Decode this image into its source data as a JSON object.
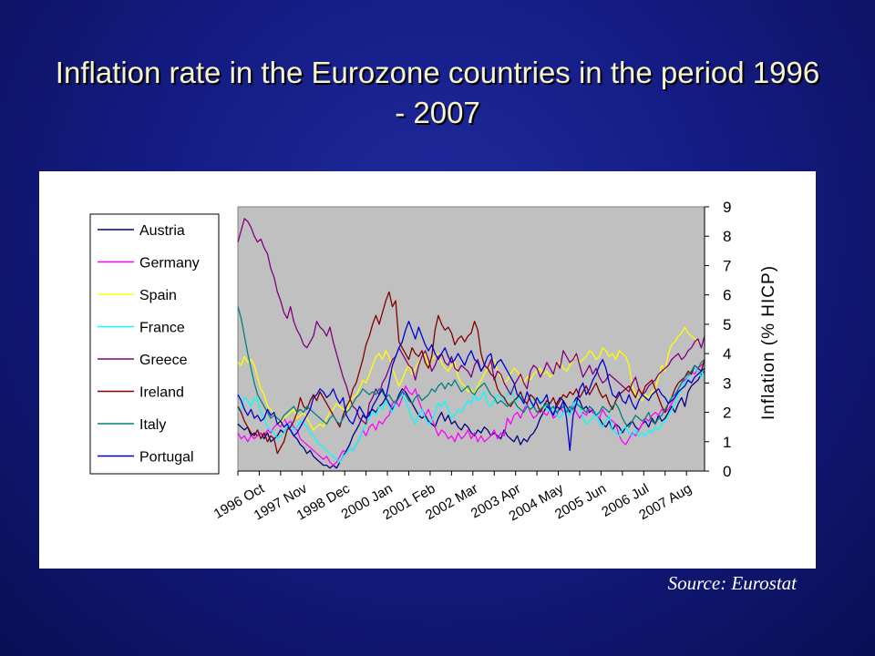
{
  "slide": {
    "title": "Inflation rate in the Eurozone countries in the period 1996 - 2007",
    "source": "Source: Eurostat"
  },
  "chart_data": {
    "type": "line",
    "title": "",
    "xlabel": "",
    "ylabel": "Inflation (% HICP)",
    "ylim": [
      0,
      9
    ],
    "yticks": [
      0,
      1,
      2,
      3,
      4,
      5,
      6,
      7,
      8,
      9
    ],
    "y_axis_side": "right",
    "grid": false,
    "legend_position": "left",
    "plot_background": "#c0c0c0",
    "x_tick_labels": [
      "1996 Oct",
      "1997 Nov",
      "1998 Dec",
      "2000 Jan",
      "2001 Feb",
      "2002 Mar",
      "2003 Apr",
      "2004 May",
      "2005 Jun",
      "2006 Jul",
      "2007 Aug"
    ],
    "x_tick_label_positions": [
      0,
      13,
      26,
      39,
      52,
      65,
      78,
      91,
      104,
      117,
      130
    ],
    "x_range": [
      0,
      142
    ],
    "x_unit": "months since 1996 Oct",
    "series": [
      {
        "name": "Austria",
        "color": "#000080",
        "values": [
          1.6,
          1.5,
          1.4,
          1.5,
          1.2,
          1.3,
          1.2,
          1.3,
          1.1,
          1.3,
          1.0,
          1.1,
          1.2,
          1.4,
          1.3,
          1.5,
          1.4,
          1.2,
          1.1,
          0.9,
          0.8,
          0.6,
          0.7,
          0.5,
          0.4,
          0.3,
          0.2,
          0.2,
          0.1,
          0.2,
          0.1,
          0.3,
          0.5,
          0.7,
          0.9,
          1.2,
          1.4,
          1.6,
          1.9,
          1.8,
          2.0,
          2.1,
          2.0,
          2.2,
          2.3,
          2.5,
          2.3,
          2.1,
          2.3,
          2.6,
          2.8,
          2.7,
          2.5,
          2.3,
          2.1,
          1.9,
          1.8,
          1.9,
          1.7,
          1.6,
          1.5,
          1.8,
          2.0,
          1.7,
          1.9,
          1.6,
          1.7,
          1.5,
          1.4,
          1.6,
          1.5,
          1.3,
          1.2,
          1.4,
          1.3,
          1.5,
          1.4,
          1.2,
          1.3,
          1.2,
          1.1,
          1.4,
          1.2,
          1.1,
          1.0,
          1.2,
          0.9,
          1.1,
          1.0,
          1.2,
          1.3,
          1.5,
          1.8,
          2.0,
          2.2,
          2.1,
          1.9,
          2.3,
          2.5,
          2.4,
          2.2,
          2.0,
          2.3,
          2.5,
          2.4,
          2.1,
          2.2,
          2.0,
          2.1,
          1.9,
          1.8,
          1.6,
          1.5,
          1.7,
          1.4,
          1.6,
          1.5,
          1.3,
          1.5,
          1.6,
          1.7,
          1.5,
          1.4,
          1.6,
          1.7,
          1.5,
          1.8,
          1.6,
          1.9,
          1.7,
          1.8,
          2.0,
          2.2,
          2.0,
          2.3,
          2.5,
          2.2,
          2.7,
          2.9,
          3.0,
          3.1,
          3.3,
          3.4
        ]
      },
      {
        "name": "Germany",
        "color": "#ff00ff",
        "values": [
          1.3,
          1.1,
          1.2,
          1.0,
          1.2,
          1.1,
          1.2,
          1.3,
          1.2,
          1.4,
          1.3,
          1.5,
          1.6,
          1.5,
          1.8,
          1.6,
          1.7,
          1.5,
          1.4,
          1.1,
          1.0,
          0.9,
          0.8,
          0.7,
          0.6,
          0.5,
          0.4,
          0.5,
          0.3,
          0.2,
          0.3,
          0.5,
          0.7,
          0.6,
          0.8,
          0.7,
          0.9,
          1.1,
          1.4,
          1.2,
          1.5,
          1.6,
          1.4,
          1.7,
          1.6,
          1.8,
          1.9,
          2.3,
          2.4,
          2.2,
          2.5,
          2.9,
          2.7,
          2.6,
          2.8,
          2.4,
          2.1,
          1.9,
          2.1,
          1.8,
          1.5,
          1.2,
          1.4,
          1.3,
          1.1,
          1.2,
          1.0,
          1.3,
          1.1,
          1.2,
          1.4,
          1.1,
          1.3,
          1.0,
          1.2,
          1.0,
          1.1,
          1.2,
          1.4,
          1.1,
          1.3,
          1.2,
          1.8,
          1.6,
          1.9,
          2.0,
          1.8,
          2.1,
          2.3,
          2.0,
          1.8,
          1.9,
          2.1,
          2.0,
          1.9,
          2.1,
          1.8,
          1.9,
          2.2,
          2.0,
          2.1,
          1.9,
          2.2,
          2.0,
          1.8,
          2.0,
          1.9,
          2.1,
          2.0,
          1.9,
          1.8,
          2.1,
          1.9,
          1.8,
          1.7,
          1.6,
          1.2,
          1.0,
          0.9,
          1.1,
          1.3,
          1.2,
          1.4,
          1.6,
          1.8,
          1.7,
          1.9,
          2.0,
          1.9,
          2.1,
          2.0,
          2.1,
          2.3,
          2.5,
          2.8,
          3.0,
          3.1,
          3.2,
          3.4,
          3.3,
          3.5,
          3.6,
          3.7
        ]
      },
      {
        "name": "Spain",
        "color": "#ffff00",
        "values": [
          3.7,
          3.6,
          3.9,
          3.7,
          3.8,
          3.6,
          3.2,
          2.8,
          2.6,
          2.2,
          2.1,
          1.9,
          1.7,
          1.6,
          1.8,
          1.9,
          2.0,
          2.1,
          1.8,
          1.9,
          2.0,
          1.8,
          1.6,
          1.4,
          1.5,
          1.6,
          1.5,
          1.8,
          2.0,
          2.1,
          2.3,
          2.2,
          2.1,
          2.0,
          2.3,
          2.5,
          2.6,
          2.8,
          3.1,
          3.0,
          3.3,
          3.6,
          3.9,
          4.0,
          3.8,
          4.1,
          3.9,
          3.5,
          3.2,
          2.9,
          3.1,
          3.4,
          3.6,
          3.3,
          3.5,
          3.7,
          3.9,
          4.0,
          3.6,
          3.8,
          3.9,
          4.0,
          3.7,
          3.5,
          3.4,
          3.6,
          3.7,
          3.2,
          3.0,
          2.9,
          2.7,
          2.8,
          2.6,
          2.9,
          3.1,
          3.3,
          3.5,
          3.6,
          3.8,
          3.4,
          3.2,
          3.0,
          3.1,
          3.3,
          3.5,
          3.4,
          3.2,
          3.0,
          3.2,
          3.1,
          3.3,
          3.4,
          3.5,
          3.3,
          3.4,
          3.2,
          3.3,
          3.6,
          3.7,
          3.5,
          3.4,
          3.6,
          3.8,
          3.9,
          3.7,
          3.8,
          3.9,
          4.1,
          4.0,
          3.8,
          3.9,
          4.2,
          4.1,
          3.9,
          4.0,
          3.8,
          4.1,
          4.0,
          3.9,
          3.6,
          2.9,
          2.6,
          2.5,
          2.4,
          2.6,
          2.5,
          2.7,
          2.8,
          3.2,
          3.6,
          3.4,
          4.0,
          4.3,
          4.4,
          4.6,
          4.7,
          4.9,
          4.7,
          4.6,
          4.5,
          4.4
        ]
      },
      {
        "name": "France",
        "color": "#00ffff",
        "values": [
          2.0,
          2.1,
          2.5,
          2.4,
          2.2,
          2.5,
          2.4,
          2.0,
          1.8,
          1.5,
          1.4,
          1.3,
          1.1,
          1.2,
          1.3,
          1.5,
          1.6,
          1.4,
          1.5,
          1.7,
          1.6,
          1.5,
          1.3,
          1.2,
          1.0,
          0.9,
          0.8,
          0.7,
          0.6,
          0.5,
          0.4,
          0.3,
          0.5,
          0.6,
          0.8,
          0.7,
          0.9,
          1.1,
          1.4,
          1.6,
          1.8,
          2.0,
          1.9,
          2.2,
          2.1,
          2.4,
          2.2,
          2.0,
          2.3,
          2.5,
          2.6,
          2.4,
          2.1,
          1.8,
          1.6,
          1.9,
          2.1,
          1.8,
          1.6,
          1.7,
          2.0,
          2.3,
          2.2,
          2.4,
          2.1,
          1.8,
          1.9,
          2.1,
          2.0,
          2.2,
          2.4,
          2.3,
          2.6,
          2.4,
          2.5,
          2.7,
          2.3,
          2.2,
          2.4,
          2.6,
          2.5,
          2.4,
          2.6,
          2.8,
          2.5,
          2.4,
          2.6,
          2.3,
          2.2,
          2.1,
          2.3,
          2.5,
          2.4,
          2.3,
          2.1,
          2.0,
          2.2,
          1.9,
          1.8,
          2.0,
          2.1,
          1.9,
          2.3,
          2.4,
          2.2,
          1.8,
          1.6,
          1.7,
          1.8,
          2.0,
          1.6,
          1.5,
          1.7,
          1.9,
          1.4,
          1.3,
          1.2,
          1.4,
          1.5,
          1.3,
          1.2,
          1.4,
          1.2,
          1.3,
          1.2,
          1.4,
          1.3,
          1.5,
          1.4,
          1.6,
          1.7,
          1.9,
          2.1,
          2.3,
          2.6,
          2.8,
          3.0,
          3.2,
          3.3,
          3.5,
          3.4,
          3.2,
          3.6
        ]
      },
      {
        "name": "Greece",
        "color": "#800080",
        "values": [
          7.8,
          8.2,
          8.6,
          8.5,
          8.3,
          8.0,
          7.8,
          7.9,
          7.6,
          7.4,
          6.9,
          6.6,
          6.1,
          5.8,
          5.4,
          5.2,
          5.6,
          5.1,
          4.8,
          4.6,
          4.3,
          4.2,
          4.4,
          4.6,
          5.1,
          4.9,
          4.8,
          4.6,
          4.9,
          4.4,
          4.0,
          3.6,
          3.2,
          2.9,
          2.5,
          2.2,
          2.1,
          1.8,
          1.7,
          1.6,
          2.3,
          2.5,
          2.8,
          2.6,
          3.0,
          3.2,
          3.5,
          3.8,
          3.9,
          4.2,
          4.0,
          3.8,
          3.6,
          3.5,
          3.1,
          3.6,
          3.9,
          4.1,
          3.8,
          3.4,
          3.6,
          3.9,
          4.0,
          3.7,
          3.6,
          3.9,
          3.5,
          3.4,
          3.6,
          3.5,
          3.4,
          3.2,
          3.6,
          3.8,
          3.4,
          3.6,
          3.5,
          3.8,
          3.1,
          3.4,
          3.3,
          3.0,
          2.8,
          2.6,
          2.9,
          3.1,
          3.3,
          3.0,
          2.8,
          3.4,
          3.6,
          3.5,
          3.2,
          3.4,
          3.7,
          3.5,
          3.3,
          3.7,
          3.5,
          4.1,
          3.9,
          3.7,
          3.8,
          4.0,
          3.6,
          3.2,
          3.4,
          3.6,
          3.3,
          3.5,
          3.2,
          3.0,
          3.1,
          3.3,
          3.2,
          3.1,
          3.0,
          2.9,
          2.8,
          2.7,
          3.0,
          3.2,
          2.8,
          2.6,
          2.7,
          2.9,
          3.0,
          3.1,
          3.3,
          3.4,
          3.5,
          3.6,
          3.8,
          3.9,
          4.0,
          3.8,
          3.9,
          4.1,
          4.2,
          4.4,
          4.5,
          4.2,
          4.6
        ]
      },
      {
        "name": "Ireland",
        "color": "#800000",
        "values": [
          2.2,
          2.0,
          1.7,
          1.5,
          1.3,
          1.2,
          1.4,
          1.1,
          1.3,
          1.0,
          1.2,
          1.1,
          0.6,
          0.8,
          1.0,
          1.4,
          1.5,
          1.7,
          2.0,
          2.5,
          2.2,
          2.1,
          2.4,
          2.6,
          2.4,
          2.7,
          2.5,
          2.3,
          2.1,
          1.9,
          1.7,
          1.5,
          1.9,
          2.2,
          2.4,
          2.8,
          3.0,
          3.4,
          3.8,
          4.3,
          4.6,
          5.0,
          5.3,
          5.0,
          5.4,
          5.8,
          6.1,
          5.6,
          5.8,
          4.4,
          4.2,
          4.0,
          3.8,
          4.2,
          4.0,
          3.9,
          4.1,
          3.7,
          3.5,
          3.9,
          4.8,
          5.3,
          5.0,
          4.8,
          4.9,
          4.7,
          4.3,
          4.5,
          4.6,
          4.4,
          4.6,
          4.7,
          5.1,
          4.8,
          4.0,
          3.6,
          3.5,
          3.3,
          3.2,
          2.8,
          2.6,
          2.5,
          2.3,
          2.2,
          2.4,
          2.5,
          2.7,
          2.4,
          2.3,
          2.6,
          2.5,
          2.3,
          2.0,
          2.2,
          2.4,
          2.3,
          2.5,
          2.2,
          2.4,
          2.6,
          2.5,
          2.7,
          2.6,
          2.8,
          2.5,
          2.7,
          2.9,
          2.6,
          2.8,
          3.0,
          2.7,
          2.5,
          2.6,
          2.3,
          2.1,
          2.4,
          2.6,
          2.7,
          2.8,
          2.9,
          2.7,
          2.5,
          2.8,
          2.6,
          2.9,
          3.0,
          3.1,
          2.8,
          2.5,
          2.2,
          2.0,
          2.3,
          2.5,
          2.8,
          3.0,
          3.1,
          3.2,
          3.4,
          3.3,
          3.6,
          3.5,
          3.4,
          3.8
        ]
      },
      {
        "name": "Italy",
        "color": "#008080",
        "values": [
          5.6,
          5.2,
          4.6,
          4.0,
          3.5,
          3.0,
          2.6,
          2.4,
          2.2,
          2.0,
          1.8,
          1.9,
          1.8,
          1.7,
          1.9,
          2.0,
          2.1,
          2.2,
          2.0,
          2.1,
          2.0,
          2.2,
          2.1,
          2.0,
          1.9,
          1.8,
          1.7,
          1.6,
          1.8,
          1.9,
          1.7,
          1.6,
          1.8,
          2.0,
          2.1,
          2.3,
          2.5,
          2.6,
          2.8,
          2.7,
          2.6,
          2.7,
          2.6,
          2.8,
          2.7,
          2.5,
          2.6,
          2.4,
          2.3,
          2.5,
          2.7,
          2.6,
          2.4,
          2.3,
          2.5,
          2.6,
          2.4,
          2.5,
          2.6,
          2.8,
          2.7,
          2.9,
          3.0,
          2.8,
          3.0,
          2.9,
          3.1,
          2.9,
          2.7,
          2.8,
          2.9,
          2.7,
          2.6,
          2.8,
          2.9,
          3.0,
          2.8,
          2.6,
          2.5,
          2.3,
          2.4,
          2.3,
          2.2,
          2.3,
          2.4,
          2.2,
          2.1,
          2.0,
          2.2,
          2.1,
          2.2,
          2.0,
          2.1,
          2.2,
          2.3,
          2.1,
          2.2,
          2.0,
          2.1,
          2.2,
          2.0,
          2.2,
          2.1,
          2.3,
          2.2,
          2.1,
          2.0,
          2.2,
          2.1,
          1.9,
          2.0,
          2.2,
          2.1,
          2.0,
          2.2,
          2.3,
          2.1,
          1.8,
          1.6,
          1.5,
          1.7,
          1.9,
          1.8,
          1.7,
          1.8,
          2.0,
          1.7,
          1.6,
          1.8,
          1.9,
          2.1,
          2.3,
          2.5,
          2.6,
          2.8,
          3.0,
          3.2,
          3.3,
          3.4,
          3.6,
          3.5,
          3.7,
          3.8
        ]
      },
      {
        "name": "Portugal",
        "color": "#0000cc",
        "values": [
          2.6,
          2.4,
          2.1,
          1.9,
          2.1,
          1.8,
          1.9,
          1.7,
          1.8,
          2.1,
          1.9,
          2.0,
          1.6,
          1.7,
          1.5,
          1.6,
          1.4,
          1.2,
          1.3,
          1.5,
          1.7,
          1.9,
          2.1,
          2.5,
          2.6,
          2.8,
          2.7,
          2.5,
          2.6,
          2.8,
          2.5,
          2.3,
          2.5,
          1.9,
          1.7,
          1.6,
          1.9,
          2.2,
          2.0,
          1.8,
          1.9,
          2.2,
          2.4,
          2.6,
          2.8,
          2.5,
          3.0,
          3.6,
          3.9,
          4.2,
          4.4,
          4.8,
          5.1,
          4.8,
          4.5,
          4.9,
          4.6,
          4.3,
          4.1,
          4.3,
          4.0,
          3.8,
          4.0,
          4.2,
          3.9,
          3.7,
          3.8,
          4.0,
          3.8,
          3.6,
          3.9,
          4.1,
          3.8,
          3.7,
          3.4,
          3.6,
          3.9,
          4.0,
          3.5,
          3.7,
          3.8,
          3.6,
          3.4,
          3.2,
          3.0,
          2.6,
          2.5,
          2.3,
          2.7,
          2.4,
          2.2,
          2.5,
          2.3,
          2.4,
          2.6,
          2.1,
          1.9,
          2.2,
          2.1,
          2.4,
          1.8,
          0.7,
          1.9,
          2.3,
          2.8,
          3.0,
          2.6,
          2.8,
          3.1,
          3.3,
          3.6,
          3.8,
          3.5,
          3.0,
          2.6,
          2.5,
          2.7,
          2.4,
          2.3,
          2.6,
          2.3,
          2.1,
          2.4,
          2.6,
          2.5,
          2.4,
          2.6,
          2.7,
          2.8,
          2.6,
          2.5,
          2.3,
          2.4,
          2.5,
          2.7,
          2.8,
          2.9,
          3.1,
          3.0,
          3.2,
          3.3,
          3.4,
          3.5
        ]
      }
    ]
  }
}
